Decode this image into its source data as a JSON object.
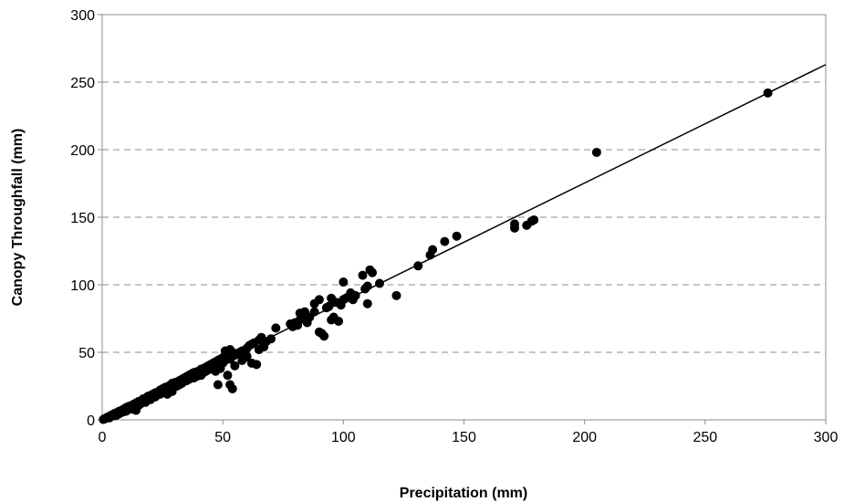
{
  "chart_data": {
    "type": "scatter",
    "title": "",
    "xlabel": "Precipitation (mm)",
    "ylabel": "Canopy Throughfall (mm)",
    "xlim": [
      0,
      300
    ],
    "ylim": [
      0,
      300
    ],
    "x_ticks": [
      "0",
      "50",
      "100",
      "150",
      "200",
      "250",
      "300"
    ],
    "y_ticks": [
      "0",
      "50",
      "100",
      "150",
      "200",
      "250",
      "300"
    ],
    "grid": "horizontal dashed",
    "legend": "none",
    "trendline": {
      "x": [
        0,
        300
      ],
      "y": [
        0,
        263
      ]
    },
    "series": [
      {
        "marker_color": "#000000",
        "points": [
          [
            0.5,
            0.3
          ],
          [
            1,
            0.8
          ],
          [
            1.5,
            1.2
          ],
          [
            2,
            1.8
          ],
          [
            2.5,
            2.2
          ],
          [
            3,
            2.5
          ],
          [
            3.5,
            3.2
          ],
          [
            4,
            3.5
          ],
          [
            4.5,
            4
          ],
          [
            5,
            4.6
          ],
          [
            5.5,
            5
          ],
          [
            6,
            5.2
          ],
          [
            7,
            6.3
          ],
          [
            8,
            7
          ],
          [
            9,
            8
          ],
          [
            10,
            9.2
          ],
          [
            11,
            10
          ],
          [
            12,
            10.5
          ],
          [
            13,
            11.5
          ],
          [
            14,
            12.5
          ],
          [
            15,
            13.5
          ],
          [
            16,
            14
          ],
          [
            17,
            15.5
          ],
          [
            18,
            16
          ],
          [
            19,
            17.5
          ],
          [
            20,
            18
          ],
          [
            21,
            19
          ],
          [
            22,
            20
          ],
          [
            23,
            20.5
          ],
          [
            24,
            22
          ],
          [
            25,
            23
          ],
          [
            26,
            24
          ],
          [
            27,
            24.5
          ],
          [
            28,
            25.5
          ],
          [
            29,
            27
          ],
          [
            30,
            27.5
          ],
          [
            31,
            28
          ],
          [
            32,
            29
          ],
          [
            33,
            30
          ],
          [
            34,
            31
          ],
          [
            35,
            32
          ],
          [
            36,
            33
          ],
          [
            37,
            34
          ],
          [
            38,
            35
          ],
          [
            39,
            35.5
          ],
          [
            40,
            36
          ],
          [
            41,
            37.5
          ],
          [
            42,
            38
          ],
          [
            43,
            39
          ],
          [
            44,
            40
          ],
          [
            45,
            41
          ],
          [
            46,
            42
          ],
          [
            47,
            43
          ],
          [
            48,
            44
          ],
          [
            49,
            45
          ],
          [
            50,
            46
          ],
          [
            51,
            47
          ],
          [
            52,
            48
          ],
          [
            53,
            49
          ],
          [
            54,
            50
          ],
          [
            10,
            6.5
          ],
          [
            12,
            8
          ],
          [
            14,
            7
          ],
          [
            15,
            10.5
          ],
          [
            18,
            13
          ],
          [
            20,
            15
          ],
          [
            22,
            17
          ],
          [
            25,
            21
          ],
          [
            28,
            24
          ],
          [
            30,
            25
          ],
          [
            32,
            26
          ],
          [
            35,
            29
          ],
          [
            38,
            31
          ],
          [
            40,
            33
          ],
          [
            42,
            35
          ],
          [
            44,
            37
          ],
          [
            48,
            40
          ],
          [
            50,
            42
          ],
          [
            5,
            3
          ],
          [
            7,
            4.5
          ],
          [
            9,
            6
          ],
          [
            3,
            1.5
          ],
          [
            6,
            3.5
          ],
          [
            8,
            5.5
          ],
          [
            11,
            8.5
          ],
          [
            13,
            9
          ],
          [
            16,
            12
          ],
          [
            19,
            15
          ],
          [
            24,
            19
          ],
          [
            26,
            22
          ],
          [
            27,
            19
          ],
          [
            29,
            21
          ],
          [
            31,
            25
          ],
          [
            33,
            27
          ],
          [
            36,
            30
          ],
          [
            39,
            32
          ],
          [
            41,
            33
          ],
          [
            43,
            36
          ],
          [
            46,
            39
          ],
          [
            47,
            36
          ],
          [
            49,
            38
          ],
          [
            51,
            44
          ],
          [
            52,
            46
          ],
          [
            53,
            45
          ],
          [
            54,
            47
          ],
          [
            55,
            48
          ],
          [
            56,
            49
          ],
          [
            57,
            50
          ],
          [
            58,
            51
          ],
          [
            60,
            53
          ],
          [
            61,
            55
          ],
          [
            62,
            56
          ],
          [
            63,
            57
          ],
          [
            65,
            59
          ],
          [
            66,
            61
          ],
          [
            67,
            56
          ],
          [
            48,
            26
          ],
          [
            53,
            26
          ],
          [
            54,
            23
          ],
          [
            52,
            33
          ],
          [
            55,
            40
          ],
          [
            58,
            44
          ],
          [
            59,
            46
          ],
          [
            60,
            47
          ],
          [
            62,
            42
          ],
          [
            64,
            41
          ],
          [
            65,
            52
          ],
          [
            67,
            54
          ],
          [
            53,
            52
          ],
          [
            51,
            51
          ],
          [
            68,
            58
          ],
          [
            70,
            60
          ],
          [
            72,
            68
          ],
          [
            78,
            71
          ],
          [
            79,
            69
          ],
          [
            80,
            72
          ],
          [
            81,
            70
          ],
          [
            82,
            74
          ],
          [
            82,
            79
          ],
          [
            83,
            77
          ],
          [
            84,
            80
          ],
          [
            85,
            72
          ],
          [
            86,
            76
          ],
          [
            88,
            86
          ],
          [
            88,
            80
          ],
          [
            90,
            89
          ],
          [
            90,
            65
          ],
          [
            91,
            64
          ],
          [
            92,
            62
          ],
          [
            93,
            83
          ],
          [
            94,
            84
          ],
          [
            95,
            90
          ],
          [
            95,
            74
          ],
          [
            96,
            76
          ],
          [
            97,
            87
          ],
          [
            98,
            73
          ],
          [
            99,
            85
          ],
          [
            100,
            89
          ],
          [
            100,
            102
          ],
          [
            101,
            90
          ],
          [
            102,
            91
          ],
          [
            103,
            94
          ],
          [
            104,
            89
          ],
          [
            105,
            92
          ],
          [
            108,
            107
          ],
          [
            109,
            97
          ],
          [
            110,
            99
          ],
          [
            110,
            86
          ],
          [
            111,
            111
          ],
          [
            112,
            109
          ],
          [
            115,
            101
          ],
          [
            122,
            92
          ],
          [
            131,
            114
          ],
          [
            136,
            122
          ],
          [
            137,
            126
          ],
          [
            142,
            132
          ],
          [
            147,
            136
          ],
          [
            171,
            142
          ],
          [
            171,
            145
          ],
          [
            176,
            144
          ],
          [
            178,
            147
          ],
          [
            179,
            148
          ],
          [
            205,
            198
          ],
          [
            276,
            242
          ]
        ]
      }
    ]
  }
}
